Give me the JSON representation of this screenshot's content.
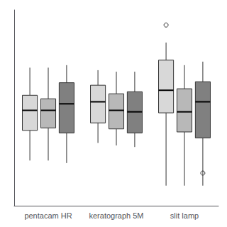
{
  "chart_data": {
    "type": "boxplot",
    "categories": [
      "pentacam HR",
      "keratograph 5M",
      "slit lamp"
    ],
    "series": [
      {
        "color": "#d8d8d8",
        "values": [
          {
            "q1": -0.45,
            "median": -0.05,
            "q3": 0.25,
            "whisker_low": -1.05,
            "whisker_high": 0.8,
            "fliers": []
          },
          {
            "q1": -0.3,
            "median": 0.12,
            "q3": 0.45,
            "whisker_low": -0.7,
            "whisker_high": 0.75,
            "fliers": []
          },
          {
            "q1": -0.1,
            "median": 0.35,
            "q3": 0.95,
            "whisker_low": -1.55,
            "whisker_high": 1.3,
            "fliers": [
              1.65
            ]
          }
        ]
      },
      {
        "color": "#b8b8b8",
        "values": [
          {
            "q1": -0.4,
            "median": -0.05,
            "q3": 0.18,
            "whisker_low": -1.05,
            "whisker_high": 0.8,
            "fliers": []
          },
          {
            "q1": -0.42,
            "median": -0.05,
            "q3": 0.28,
            "whisker_low": -0.75,
            "whisker_high": 0.72,
            "fliers": []
          },
          {
            "q1": -0.48,
            "median": -0.08,
            "q3": 0.38,
            "whisker_low": -1.55,
            "whisker_high": 0.85,
            "fliers": []
          }
        ]
      },
      {
        "color": "#808080",
        "values": [
          {
            "q1": -0.5,
            "median": 0.08,
            "q3": 0.5,
            "whisker_low": -1.1,
            "whisker_high": 0.85,
            "fliers": []
          },
          {
            "q1": -0.5,
            "median": -0.08,
            "q3": 0.32,
            "whisker_low": -0.78,
            "whisker_high": 0.72,
            "fliers": []
          },
          {
            "q1": -0.6,
            "median": 0.12,
            "q3": 0.52,
            "whisker_low": -1.55,
            "whisker_high": 0.92,
            "fliers": [
              -1.3
            ]
          }
        ]
      }
    ],
    "ylim": [
      -1.95,
      1.95
    ],
    "grid": false,
    "tick_labels": "x"
  }
}
